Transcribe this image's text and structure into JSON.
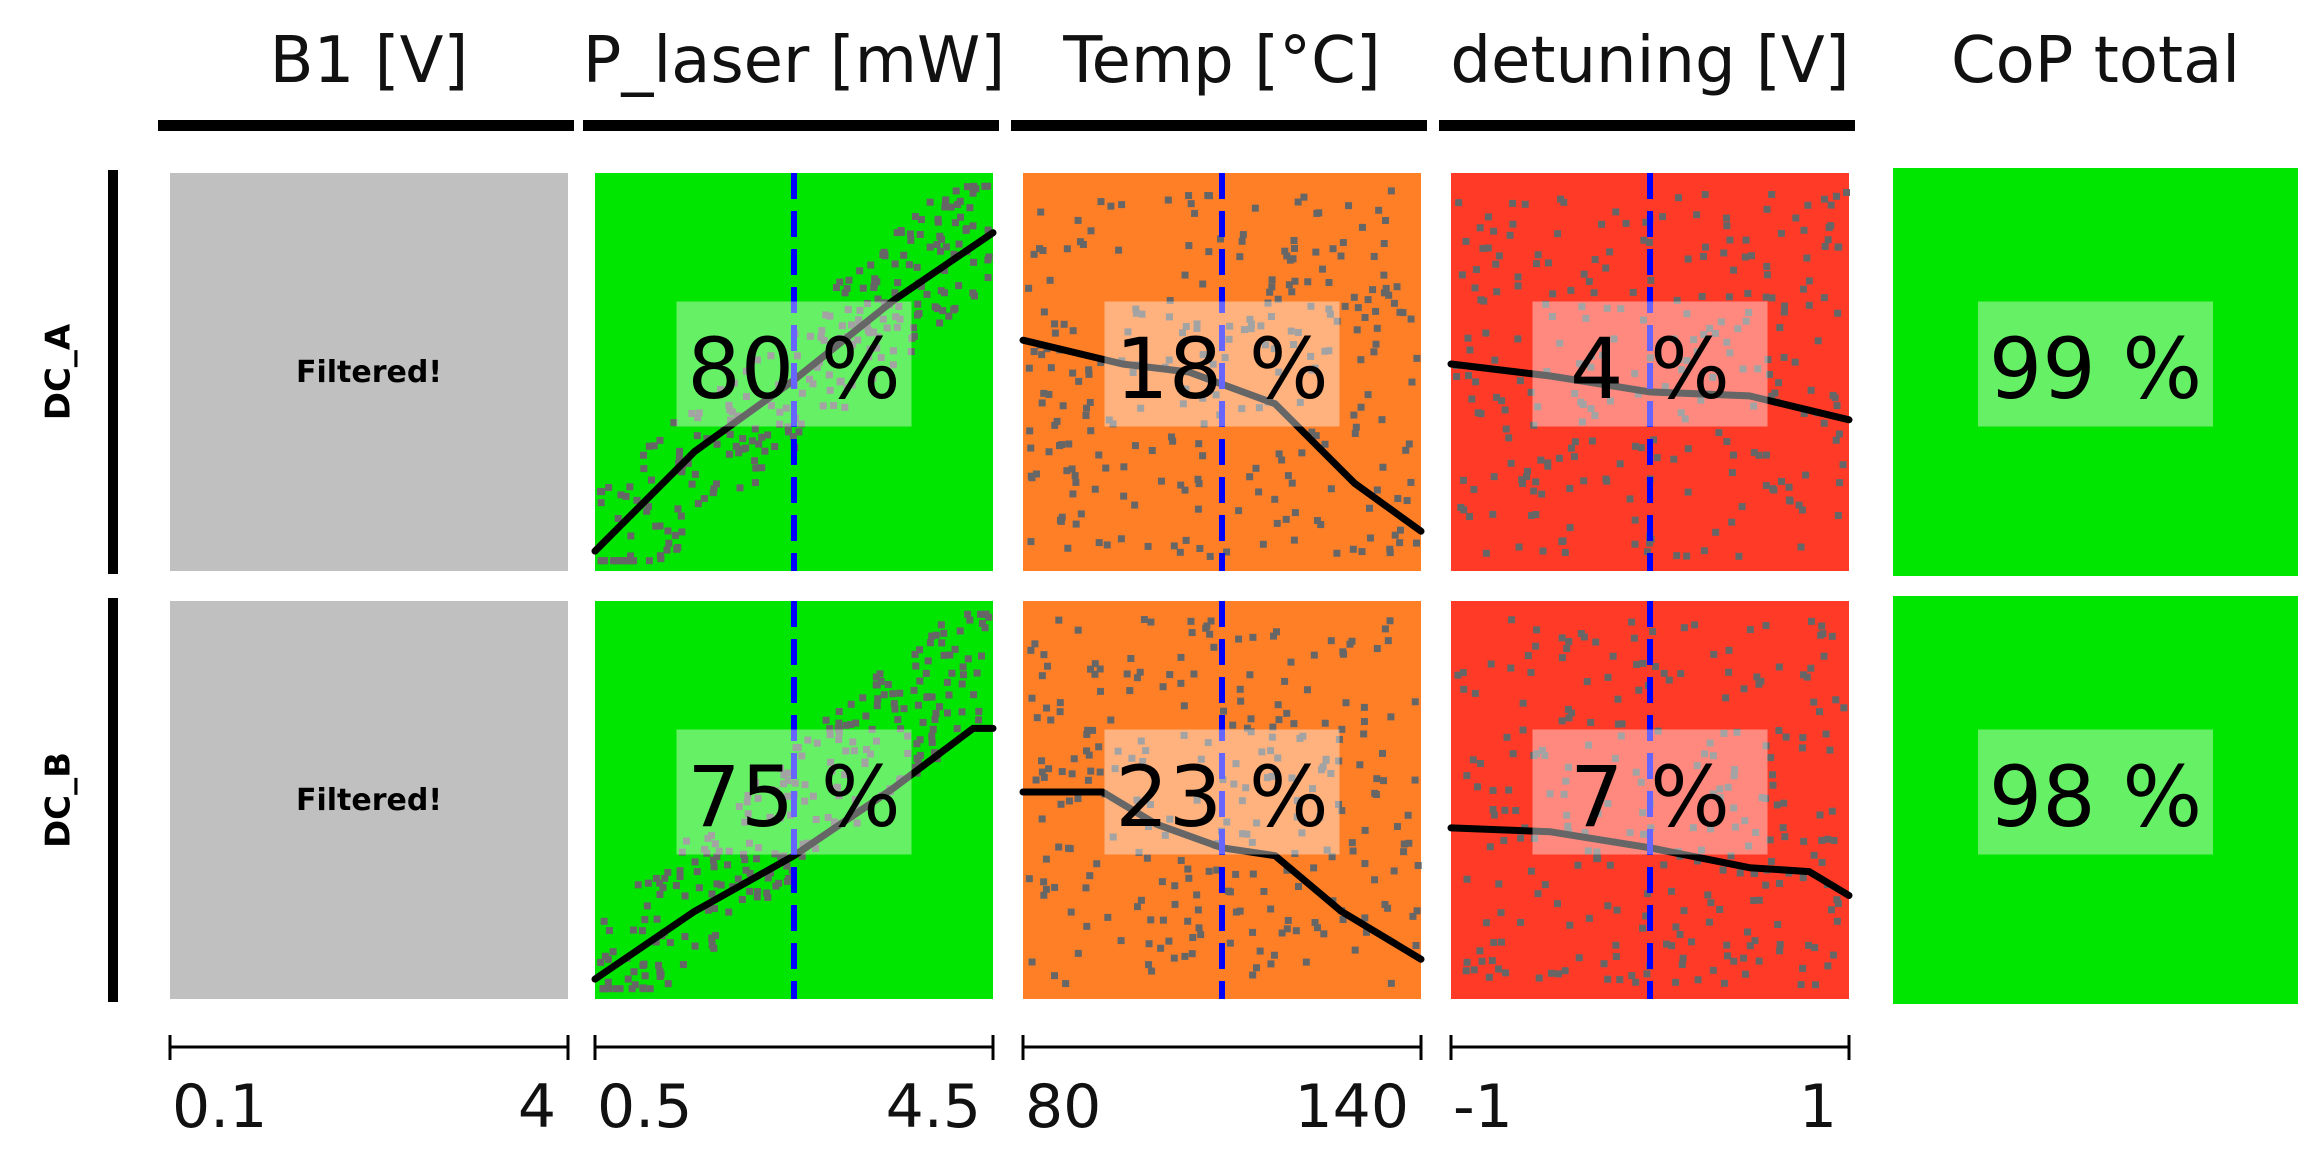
{
  "chart_data": {
    "type": "scatter",
    "columns": [
      {
        "key": "b1",
        "header": "B1 [V]",
        "ticks": [
          "0.1",
          "4"
        ],
        "xlim": [
          0.1,
          4
        ]
      },
      {
        "key": "p_laser",
        "header": "P_laser [mW]",
        "ticks": [
          "0.5",
          "4.5"
        ],
        "xlim": [
          0.5,
          4.5
        ],
        "reference": 2.5
      },
      {
        "key": "temp",
        "header": "Temp [°C]",
        "ticks": [
          "80",
          "140"
        ],
        "xlim": [
          80,
          140
        ],
        "reference": 110
      },
      {
        "key": "detuning",
        "header": "detuning [V]",
        "ticks": [
          "-1",
          "1"
        ],
        "xlim": [
          -1,
          1
        ],
        "reference": 0.0
      }
    ],
    "total_header": "CoP total",
    "rows": [
      {
        "label": "DC_A",
        "cells": [
          {
            "status": "filtered",
            "text": "Filtered!",
            "color": "#c0c0c0"
          },
          {
            "percent": "80 %",
            "color": "#00e600",
            "scatter": "rising",
            "trend": [
              [
                0.5,
                0.05
              ],
              [
                1.5,
                0.3
              ],
              [
                2.5,
                0.48
              ],
              [
                3.5,
                0.68
              ],
              [
                4.5,
                0.85
              ]
            ]
          },
          {
            "percent": "18 %",
            "color": "#ff7f27",
            "scatter": "flat",
            "trend": [
              [
                80,
                0.58
              ],
              [
                95,
                0.52
              ],
              [
                105,
                0.5
              ],
              [
                118,
                0.42
              ],
              [
                130,
                0.22
              ],
              [
                140,
                0.1
              ]
            ]
          },
          {
            "percent": "4 %",
            "color": "#ff3b28",
            "scatter": "flat",
            "trend": [
              [
                -1,
                0.52
              ],
              [
                -0.5,
                0.49
              ],
              [
                0,
                0.45
              ],
              [
                0.5,
                0.44
              ],
              [
                1,
                0.38
              ]
            ]
          }
        ],
        "total": {
          "percent": "99 %",
          "color": "#00e600"
        }
      },
      {
        "label": "DC_B",
        "cells": [
          {
            "status": "filtered",
            "text": "Filtered!",
            "color": "#c0c0c0"
          },
          {
            "percent": "75 %",
            "color": "#00e600",
            "scatter": "rising",
            "trend": [
              [
                0.5,
                0.05
              ],
              [
                1.5,
                0.22
              ],
              [
                2.5,
                0.36
              ],
              [
                3.5,
                0.53
              ],
              [
                4.3,
                0.68
              ],
              [
                4.5,
                0.68
              ]
            ]
          },
          {
            "percent": "23 %",
            "color": "#ff7f27",
            "scatter": "flat",
            "trend": [
              [
                80,
                0.52
              ],
              [
                92,
                0.52
              ],
              [
                100,
                0.44
              ],
              [
                110,
                0.38
              ],
              [
                118,
                0.36
              ],
              [
                128,
                0.22
              ],
              [
                140,
                0.1
              ]
            ]
          },
          {
            "percent": "7 %",
            "color": "#ff3b28",
            "scatter": "flat",
            "trend": [
              [
                -1,
                0.43
              ],
              [
                -0.5,
                0.42
              ],
              [
                0,
                0.38
              ],
              [
                0.5,
                0.33
              ],
              [
                0.8,
                0.32
              ],
              [
                1,
                0.26
              ]
            ]
          }
        ],
        "total": {
          "percent": "98 %",
          "color": "#00e600"
        }
      }
    ],
    "series_colors": {
      "points": "#666666",
      "trend": "#000000",
      "reference_line": "#0000ff",
      "label_box": "#ffffff"
    }
  }
}
